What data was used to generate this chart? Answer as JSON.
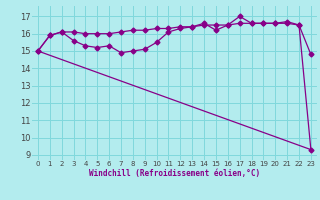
{
  "xlabel": "Windchill (Refroidissement éolien,°C)",
  "background_color": "#b3ecee",
  "line_color": "#880088",
  "grid_color": "#80d8dc",
  "xlim": [
    -0.5,
    23.5
  ],
  "ylim": [
    8.7,
    17.6
  ],
  "yticks": [
    9,
    10,
    11,
    12,
    13,
    14,
    15,
    16,
    17
  ],
  "xticks": [
    0,
    1,
    2,
    3,
    4,
    5,
    6,
    7,
    8,
    9,
    10,
    11,
    12,
    13,
    14,
    15,
    16,
    17,
    18,
    19,
    20,
    21,
    22,
    23
  ],
  "line1_x": [
    0,
    1,
    2,
    3,
    4,
    5,
    6,
    7,
    8,
    9,
    10,
    11,
    12,
    13,
    14,
    15,
    16,
    17,
    18,
    19,
    20,
    21,
    22,
    23
  ],
  "line1_y": [
    15.0,
    15.9,
    16.1,
    16.1,
    16.0,
    16.0,
    16.0,
    16.1,
    16.2,
    16.2,
    16.3,
    16.3,
    16.4,
    16.4,
    16.5,
    16.5,
    16.5,
    16.6,
    16.6,
    16.6,
    16.6,
    16.6,
    16.5,
    9.3
  ],
  "line2_x": [
    0,
    1,
    2,
    3,
    4,
    5,
    6,
    7,
    8,
    9,
    10,
    11,
    12,
    13,
    14,
    15,
    16,
    17,
    18,
    19,
    20,
    21,
    22,
    23
  ],
  "line2_y": [
    15.0,
    15.9,
    16.1,
    15.6,
    15.3,
    15.2,
    15.3,
    14.9,
    15.0,
    15.1,
    15.5,
    16.1,
    16.3,
    16.4,
    16.6,
    16.2,
    16.5,
    17.0,
    16.6,
    16.6,
    16.6,
    16.7,
    16.5,
    14.8
  ],
  "line3_x": [
    0,
    23
  ],
  "line3_y": [
    15.0,
    9.3
  ],
  "marker": "D",
  "markersize": 2.5,
  "linewidth": 0.9
}
